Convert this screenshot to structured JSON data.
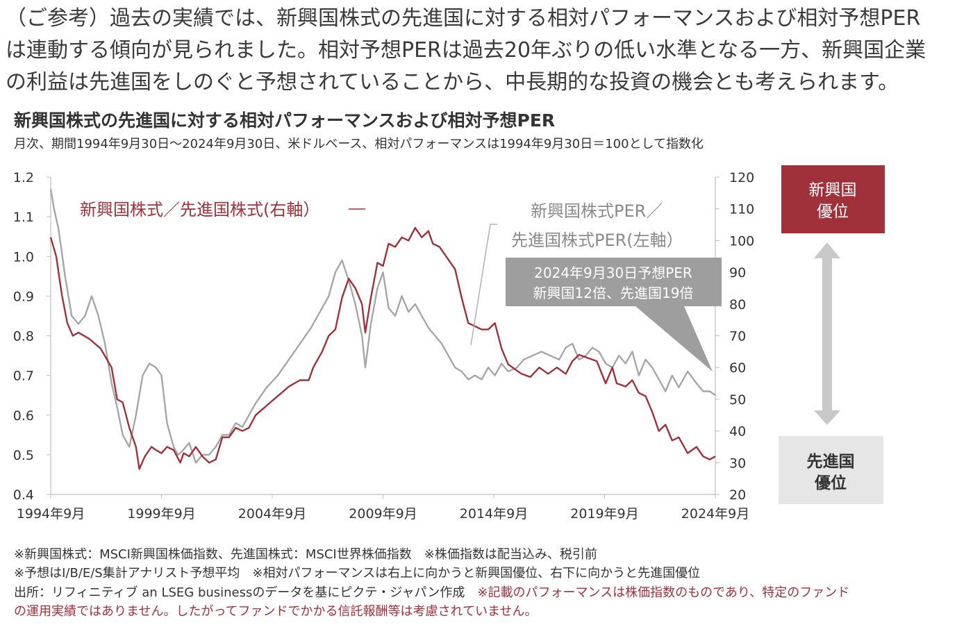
{
  "intro": {
    "line1": "（ご参考）過去の実績では、新興国株式の先進国に対する相対パフォーマンスおよび相対予想PER",
    "line2": "は連動する傾向が見られました。相対予想PERは過去20年ぶりの低い水準となる一方、新興国企業",
    "line3": "の利益は先進国をしのぐと予想されていることから、中長期的な投資の機会とも考えられます。"
  },
  "chart_title": "新興国株式の先進国に対する相対パフォーマンスおよび相対予想PER",
  "chart_subtitle": "月次、期間1994年9月30日～2024年9月30日、米ドルベース、相対パフォーマンスは1994年9月30日＝100として指数化",
  "notes": {
    "line1": "※新興国株式：MSCI新興国株価指数、先進国株式：MSCI世界株価指数　※株価指数は配当込み、税引前",
    "line2": "※予想はI/B/E/S集計アナリスト予想平均　※相対パフォーマンスは右上に向かうと新興国優位、右下に向かうと先進国優位",
    "line3_source": "出所：リフィニティブ an LSEG businessのデータを基にピクテ・ジャパン作成",
    "line3_disclaimer": "※記載のパフォーマンスは株価指数のものであり、特定のファンド",
    "line4_disclaimer": "の運用実績ではありません。したがってファンドでかかる信託報酬等は考慮されていません。"
  },
  "side_boxes": {
    "em_label_1": "新興国",
    "em_label_2": "優位",
    "dm_label_1": "先進国",
    "dm_label_2": "優位"
  },
  "colors": {
    "red": "#a0303a",
    "gray": "#a6a6a6",
    "callout": "#9e9e9e",
    "light_box": "#e6e6e6",
    "arrow": "#c8c8c8"
  },
  "chart_data": {
    "type": "line",
    "x_tick_labels": [
      "1994年9月",
      "1999年9月",
      "2004年9月",
      "2009年9月",
      "2014年9月",
      "2019年9月",
      "2024年9月"
    ],
    "x_ticks": [
      1994.75,
      1999.75,
      2004.75,
      2009.75,
      2014.75,
      2019.75,
      2024.75
    ],
    "xlim": [
      1994.75,
      2024.75
    ],
    "y_left": {
      "lim": [
        0.4,
        1.2
      ],
      "ticks": [
        "0.4",
        "0.5",
        "0.6",
        "0.7",
        "0.8",
        "0.9",
        "1.0",
        "1.1",
        "1.2"
      ]
    },
    "y_right": {
      "lim": [
        20,
        120
      ],
      "ticks": [
        "20",
        "30",
        "40",
        "50",
        "60",
        "70",
        "80",
        "90",
        "100",
        "110",
        "120"
      ]
    },
    "annotations": {
      "red_label": "新興国株式／先進国株式(右軸）",
      "gray_label_1": "新興国株式PER／",
      "gray_label_2": "先進国株式PER(左軸）",
      "callout_1": "2024年9月30日予想PER",
      "callout_2": "新興国12倍、先進国19倍"
    },
    "series": [
      {
        "axis": "right",
        "x": [
          1994.75,
          1995.0,
          1995.25,
          1995.5,
          1995.75,
          1996.0,
          1996.5,
          1997.0,
          1997.5,
          1997.75,
          1998.0,
          1998.3,
          1998.6,
          1998.75,
          1999.0,
          1999.3,
          1999.5,
          1999.75,
          2000.0,
          2000.3,
          2000.6,
          2000.75,
          2001.0,
          2001.3,
          2001.6,
          2001.9,
          2002.2,
          2002.5,
          2002.8,
          2003.1,
          2003.4,
          2003.7,
          2004.0,
          2004.5,
          2005.0,
          2005.5,
          2006.0,
          2006.4,
          2006.6,
          2007.0,
          2007.3,
          2007.6,
          2007.9,
          2008.2,
          2008.5,
          2008.8,
          2008.95,
          2009.2,
          2009.5,
          2009.75,
          2010.0,
          2010.3,
          2010.6,
          2010.9,
          2011.2,
          2011.5,
          2011.8,
          2012.0,
          2012.3,
          2012.6,
          2013.0,
          2013.3,
          2013.6,
          2013.9,
          2014.2,
          2014.5,
          2014.8,
          2015.1,
          2015.4,
          2015.8,
          2016.0,
          2016.4,
          2016.8,
          2017.2,
          2017.6,
          2018.0,
          2018.3,
          2018.6,
          2019.0,
          2019.4,
          2019.8,
          2020.1,
          2020.3,
          2020.7,
          2021.0,
          2021.3,
          2021.6,
          2021.9,
          2022.2,
          2022.5,
          2022.8,
          2023.1,
          2023.5,
          2023.9,
          2024.2,
          2024.5,
          2024.75
        ],
        "values": [
          101,
          95,
          83,
          74,
          70,
          71,
          69,
          66,
          60,
          50,
          49,
          41,
          35,
          28,
          32,
          35,
          34,
          33,
          35,
          34,
          30,
          33,
          32,
          35,
          32,
          30,
          31,
          38,
          38,
          41,
          40,
          41,
          45,
          48,
          51,
          54,
          56,
          56,
          60,
          65,
          70,
          72,
          82,
          88,
          85,
          80,
          71,
          82,
          93,
          92,
          99,
          98,
          101,
          100,
          104,
          101,
          103,
          99,
          98,
          95,
          91,
          82,
          74,
          73,
          72,
          72,
          74,
          66,
          61,
          59,
          58,
          57,
          60,
          58,
          60,
          58,
          62,
          64,
          63,
          62,
          55,
          60,
          55,
          54,
          56,
          52,
          51,
          46,
          40,
          42,
          37,
          38,
          33,
          35,
          32,
          31,
          32
        ]
      },
      {
        "axis": "left",
        "x": [
          1994.75,
          1994.9,
          1995.1,
          1995.4,
          1995.7,
          1996.0,
          1996.3,
          1996.6,
          1996.9,
          1997.2,
          1997.5,
          1997.75,
          1998.0,
          1998.3,
          1998.6,
          1998.9,
          1999.2,
          1999.5,
          1999.75,
          2000.0,
          2000.3,
          2000.5,
          2000.7,
          2001.0,
          2001.3,
          2001.6,
          2001.9,
          2002.2,
          2002.5,
          2002.8,
          2003.1,
          2003.4,
          2003.7,
          2004.0,
          2004.5,
          2005.0,
          2005.5,
          2006.0,
          2006.5,
          2007.0,
          2007.3,
          2007.6,
          2007.9,
          2008.2,
          2008.5,
          2008.8,
          2008.95,
          2009.2,
          2009.5,
          2009.75,
          2010.0,
          2010.3,
          2010.6,
          2010.9,
          2011.2,
          2011.5,
          2011.8,
          2012.1,
          2012.4,
          2012.7,
          2013.0,
          2013.3,
          2013.6,
          2013.9,
          2014.2,
          2014.5,
          2014.8,
          2015.1,
          2015.4,
          2015.8,
          2016.1,
          2016.5,
          2016.9,
          2017.3,
          2017.7,
          2018.0,
          2018.3,
          2018.6,
          2018.9,
          2019.2,
          2019.5,
          2019.8,
          2020.1,
          2020.4,
          2020.7,
          2021.0,
          2021.3,
          2021.6,
          2021.9,
          2022.2,
          2022.5,
          2022.8,
          2023.1,
          2023.5,
          2023.9,
          2024.2,
          2024.5,
          2024.75
        ],
        "values": [
          1.17,
          1.12,
          1.07,
          0.95,
          0.85,
          0.83,
          0.85,
          0.9,
          0.85,
          0.78,
          0.68,
          0.62,
          0.55,
          0.52,
          0.6,
          0.7,
          0.73,
          0.72,
          0.7,
          0.58,
          0.52,
          0.5,
          0.51,
          0.53,
          0.48,
          0.5,
          0.5,
          0.52,
          0.55,
          0.55,
          0.58,
          0.57,
          0.6,
          0.63,
          0.67,
          0.7,
          0.74,
          0.78,
          0.82,
          0.87,
          0.9,
          0.96,
          0.99,
          0.94,
          0.88,
          0.8,
          0.72,
          0.83,
          0.92,
          0.96,
          0.87,
          0.85,
          0.9,
          0.86,
          0.88,
          0.85,
          0.82,
          0.8,
          0.78,
          0.75,
          0.72,
          0.71,
          0.69,
          0.7,
          0.69,
          0.72,
          0.7,
          0.73,
          0.71,
          0.72,
          0.74,
          0.75,
          0.76,
          0.75,
          0.74,
          0.77,
          0.78,
          0.74,
          0.75,
          0.77,
          0.76,
          0.73,
          0.72,
          0.75,
          0.73,
          0.76,
          0.7,
          0.74,
          0.72,
          0.69,
          0.66,
          0.7,
          0.67,
          0.71,
          0.68,
          0.66,
          0.66,
          0.65
        ]
      }
    ]
  }
}
